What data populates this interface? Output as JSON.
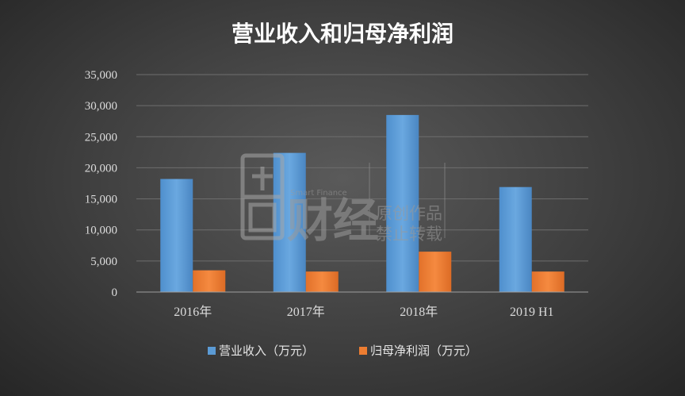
{
  "chart_data": {
    "type": "bar",
    "title": "营业收入和归母净利润",
    "categories": [
      "2016年",
      "2017年",
      "2018年",
      "2019 H1"
    ],
    "series": [
      {
        "name": "营业收入（万元）",
        "color": "#5b9bd5",
        "values": [
          18200,
          22400,
          28500,
          16900
        ]
      },
      {
        "name": "归母净利润（万元）",
        "color": "#ed7d31",
        "values": [
          3500,
          3300,
          6500,
          3300
        ]
      }
    ],
    "ylim": [
      0,
      35000
    ],
    "yticks": [
      0,
      5000,
      10000,
      15000,
      20000,
      25000,
      30000,
      35000
    ],
    "ytick_labels": [
      "0",
      "5,000",
      "10,000",
      "15,000",
      "20,000",
      "25,000",
      "30,000",
      "35,000"
    ],
    "grid": true,
    "legend_position": "bottom"
  },
  "watermark": {
    "logo_icon": "grid-square-logo-icon",
    "en": "Smart Finance",
    "cn_brand": "财经",
    "line1": "原创作品",
    "line2": "禁止转载"
  }
}
